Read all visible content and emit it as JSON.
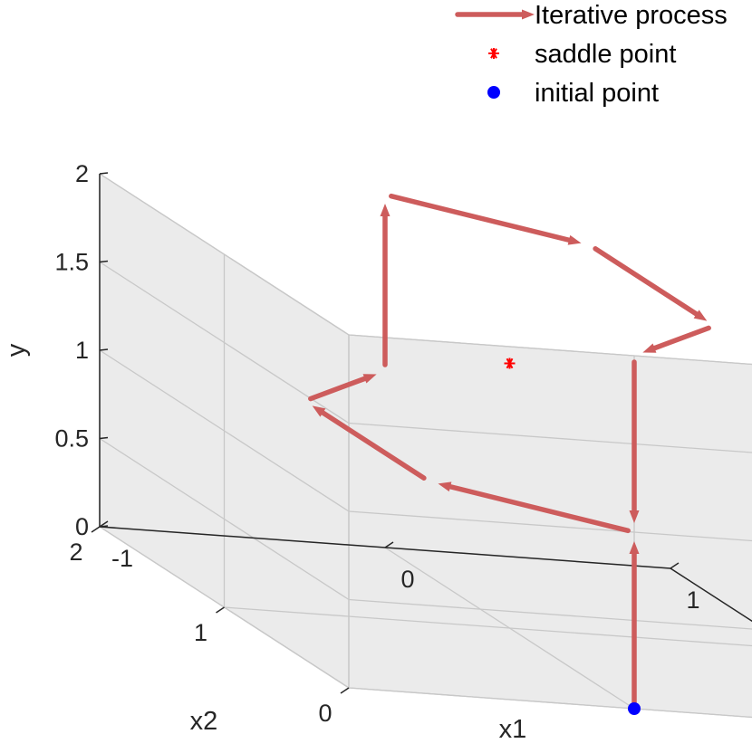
{
  "chart_data": {
    "type": "3d-line",
    "title": "",
    "xlabel": "x1",
    "ylabel": "x2",
    "zlabel": "y",
    "xlim": [
      -1,
      1
    ],
    "ylim": [
      0,
      2
    ],
    "zlim": [
      0,
      2
    ],
    "x_ticks": [
      "-1",
      "0",
      "1"
    ],
    "y_ticks": [
      "0",
      "1",
      "2"
    ],
    "z_ticks": [
      "0",
      "0.5",
      "1",
      "1.5",
      "2"
    ],
    "grid": true,
    "legend_placement": "top-right",
    "series": [
      {
        "name": "Iterative process",
        "kind": "quiver",
        "color": "#CD5C5C",
        "segments": [
          {
            "from": [
              0,
              0,
              0
            ],
            "to": [
              0,
              0,
              1
            ]
          },
          {
            "from": [
              0,
              0,
              1
            ],
            "to": [
              -0.5,
              0.5,
              1
            ]
          },
          {
            "from": [
              -0.5,
              0.5,
              1
            ],
            "to": [
              -0.5,
              1.5,
              1
            ]
          },
          {
            "from": [
              -0.5,
              1.5,
              1
            ],
            "to": [
              0,
              2,
              1
            ]
          },
          {
            "from": [
              0,
              2,
              1
            ],
            "to": [
              0,
              2,
              2
            ]
          },
          {
            "from": [
              0,
              2,
              2
            ],
            "to": [
              0.5,
              1.5,
              2
            ]
          },
          {
            "from": [
              0.5,
              1.5,
              2
            ],
            "to": [
              0.5,
              0.5,
              2
            ]
          },
          {
            "from": [
              0.5,
              0.5,
              2
            ],
            "to": [
              0,
              0,
              2
            ]
          },
          {
            "from": [
              0,
              0,
              2
            ],
            "to": [
              0,
              0,
              1
            ]
          }
        ]
      },
      {
        "name": "saddle point",
        "kind": "marker",
        "marker": "asterisk",
        "color": "#FF0000",
        "points": [
          [
            0,
            1,
            1.5
          ]
        ]
      },
      {
        "name": "initial point",
        "kind": "marker",
        "marker": "filled-circle",
        "color": "#0000FF",
        "points": [
          [
            0,
            0,
            0
          ]
        ]
      }
    ]
  }
}
